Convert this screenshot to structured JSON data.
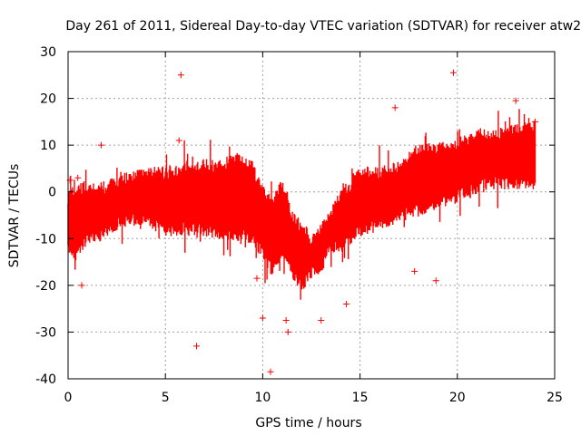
{
  "chart_data": {
    "type": "scatter",
    "title": "Day 261 of 2011, Sidereal Day-to-day VTEC variation (SDTVAR) for receiver atw2",
    "xlabel": "GPS time / hours",
    "ylabel": "SDTVAR / TECUs",
    "xlim": [
      0,
      25
    ],
    "ylim": [
      -40,
      30
    ],
    "xticks": [
      0,
      5,
      10,
      15,
      20,
      25
    ],
    "yticks": [
      -40,
      -30,
      -20,
      -10,
      0,
      10,
      20,
      30
    ],
    "grid": true,
    "marker": "+",
    "series": [
      {
        "name": "SDTVAR",
        "color": "#ff0000",
        "band": {
          "x": [
            0.0,
            0.3,
            0.6,
            1.0,
            2.0,
            3.0,
            4.0,
            5.0,
            6.0,
            7.0,
            8.0,
            8.7,
            9.5,
            10.0,
            10.5,
            11.0,
            11.5,
            12.0,
            12.5,
            13.0,
            13.5,
            14.0,
            14.5,
            15.0,
            16.0,
            17.0,
            18.0,
            19.0,
            20.0,
            21.0,
            22.0,
            23.0,
            24.0
          ],
          "upper": [
            -1,
            0,
            1,
            0,
            1,
            3,
            4,
            4,
            5,
            5,
            6,
            7,
            5,
            0,
            -3,
            2,
            -5,
            -8,
            -11,
            -8,
            -5,
            -1,
            1,
            4,
            4,
            5,
            9,
            9,
            10,
            12,
            12,
            13,
            14
          ],
          "lower": [
            -12,
            -14,
            -12,
            -10,
            -8,
            -6,
            -6,
            -8,
            -8,
            -8,
            -9,
            -9,
            -10,
            -13,
            -17,
            -12,
            -17,
            -20,
            -17,
            -16,
            -12,
            -12,
            -10,
            -8,
            -7,
            -5,
            -4,
            -2,
            -1,
            1,
            2,
            2,
            2
          ]
        },
        "points": [
          {
            "x": 0.7,
            "y": -20
          },
          {
            "x": 1.7,
            "y": 10
          },
          {
            "x": 5.8,
            "y": 25
          },
          {
            "x": 5.7,
            "y": 11
          },
          {
            "x": 6.6,
            "y": -33
          },
          {
            "x": 10.0,
            "y": -27
          },
          {
            "x": 10.4,
            "y": -38.5
          },
          {
            "x": 11.2,
            "y": -27.5
          },
          {
            "x": 11.3,
            "y": -30
          },
          {
            "x": 13.0,
            "y": -27.5
          },
          {
            "x": 14.3,
            "y": -24
          },
          {
            "x": 16.8,
            "y": 18
          },
          {
            "x": 18.9,
            "y": -19
          },
          {
            "x": 19.8,
            "y": 25.5
          },
          {
            "x": 23.0,
            "y": 19.5
          },
          {
            "x": 24.0,
            "y": 15
          },
          {
            "x": 9.7,
            "y": -18.5
          },
          {
            "x": 17.8,
            "y": -17
          },
          {
            "x": 0.1,
            "y": 2.5
          },
          {
            "x": 0.5,
            "y": 3
          }
        ]
      }
    ]
  }
}
